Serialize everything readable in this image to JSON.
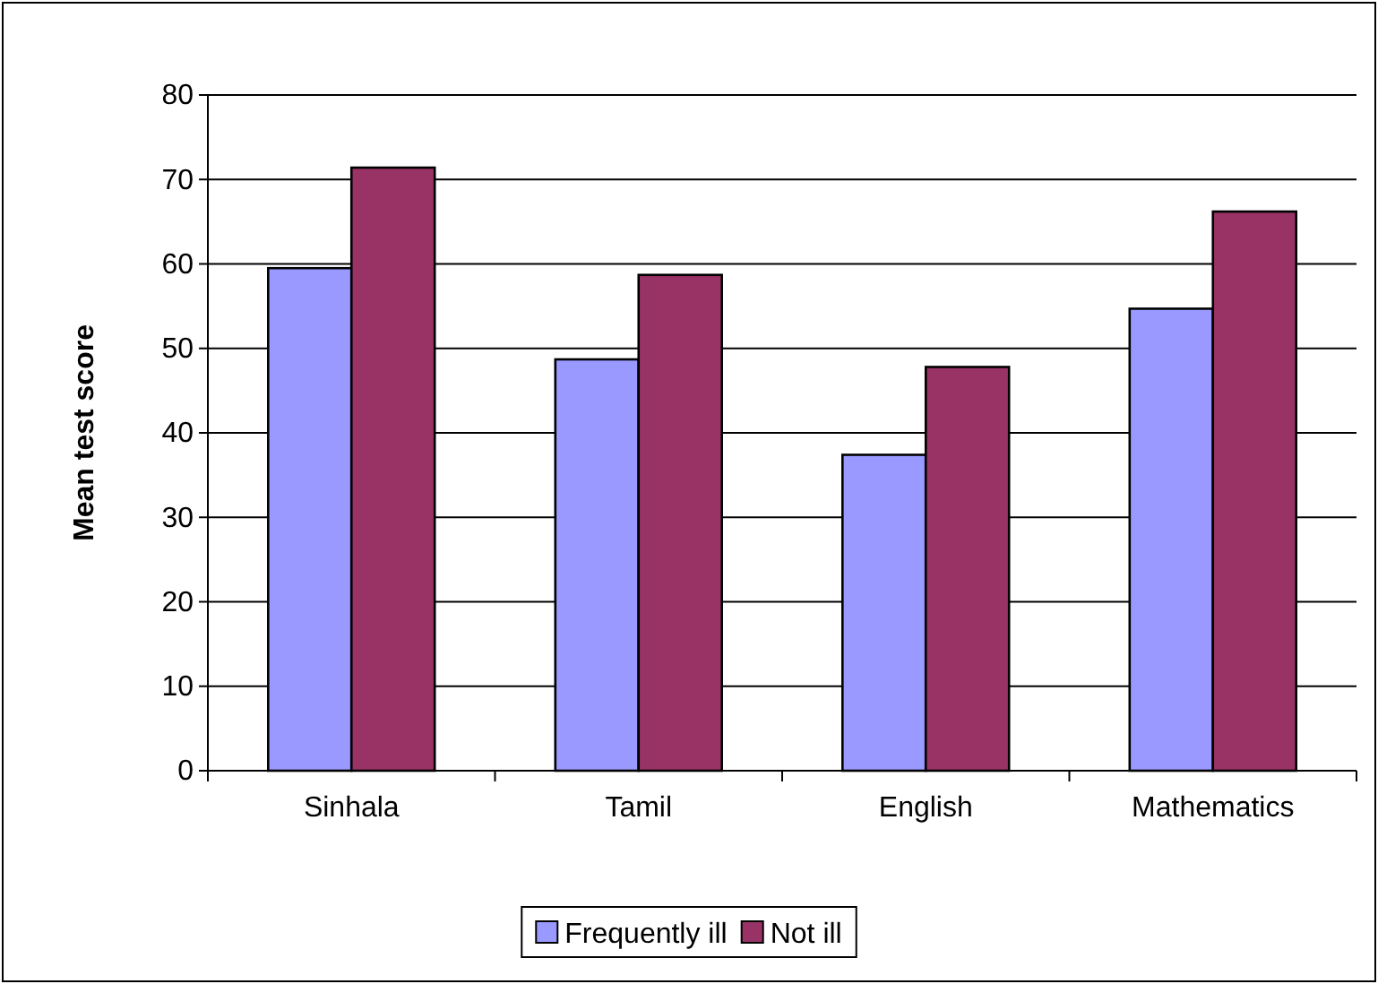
{
  "chart_data": {
    "type": "bar",
    "ylabel": "Mean test score",
    "categories": [
      "Sinhala",
      "Tamil",
      "English",
      "Mathematics"
    ],
    "series": [
      {
        "name": "Frequently ill",
        "color": "#9999ff",
        "values": [
          59.5,
          48.7,
          37.4,
          54.7
        ]
      },
      {
        "name": "Not ill",
        "color": "#993366",
        "values": [
          71.4,
          58.7,
          47.8,
          66.2
        ]
      }
    ],
    "ylim": [
      0,
      80
    ],
    "yticks": [
      0,
      10,
      20,
      30,
      40,
      50,
      60,
      70,
      80
    ],
    "grid": "y",
    "legend": "bottom"
  }
}
